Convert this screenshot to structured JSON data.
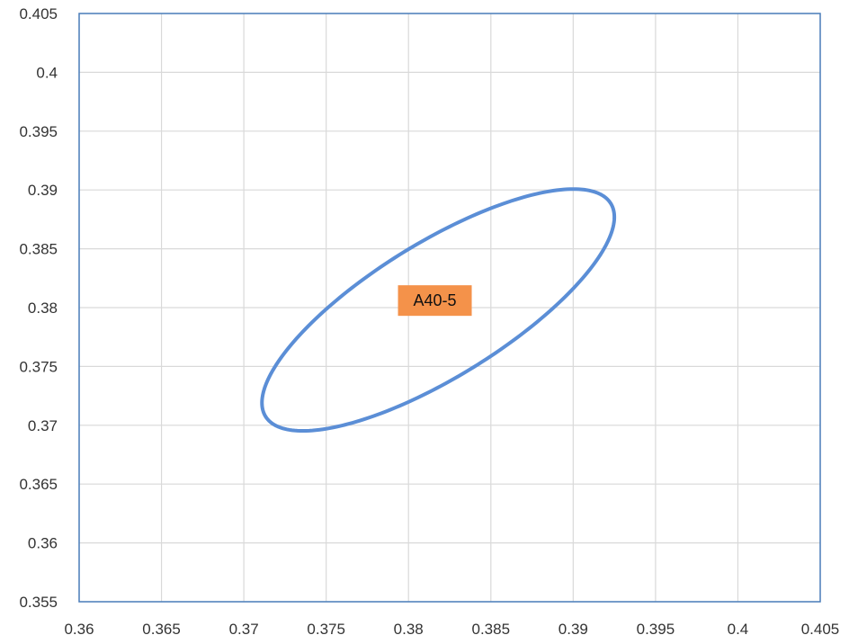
{
  "chart_data": {
    "type": "scatter",
    "title": "",
    "xlabel": "",
    "ylabel": "",
    "xlim": [
      0.36,
      0.405
    ],
    "ylim": [
      0.355,
      0.405
    ],
    "x_ticks": [
      "0.36",
      "0.365",
      "0.37",
      "0.375",
      "0.38",
      "0.385",
      "0.39",
      "0.395",
      "0.4",
      "0.405"
    ],
    "y_ticks": [
      "0.355",
      "0.36",
      "0.365",
      "0.37",
      "0.375",
      "0.38",
      "0.385",
      "0.39",
      "0.395",
      "0.4",
      "0.405"
    ],
    "grid": true,
    "series": [
      {
        "shape": "ellipse",
        "center": [
          0.3818,
          0.3798
        ],
        "semi_major": 0.01395,
        "semi_minor": 0.00505,
        "rotation_deg": 43.5,
        "color": "#5B8ED6"
      }
    ],
    "annotations": [
      {
        "text": "A40-5",
        "x": 0.3816,
        "y": 0.3806,
        "background": "#F4924A"
      }
    ]
  },
  "colors": {
    "axis": "#4A7EBB",
    "grid": "#D9D9D9",
    "ellipse": "#5B8ED6",
    "label_bg": "#F4924A"
  }
}
